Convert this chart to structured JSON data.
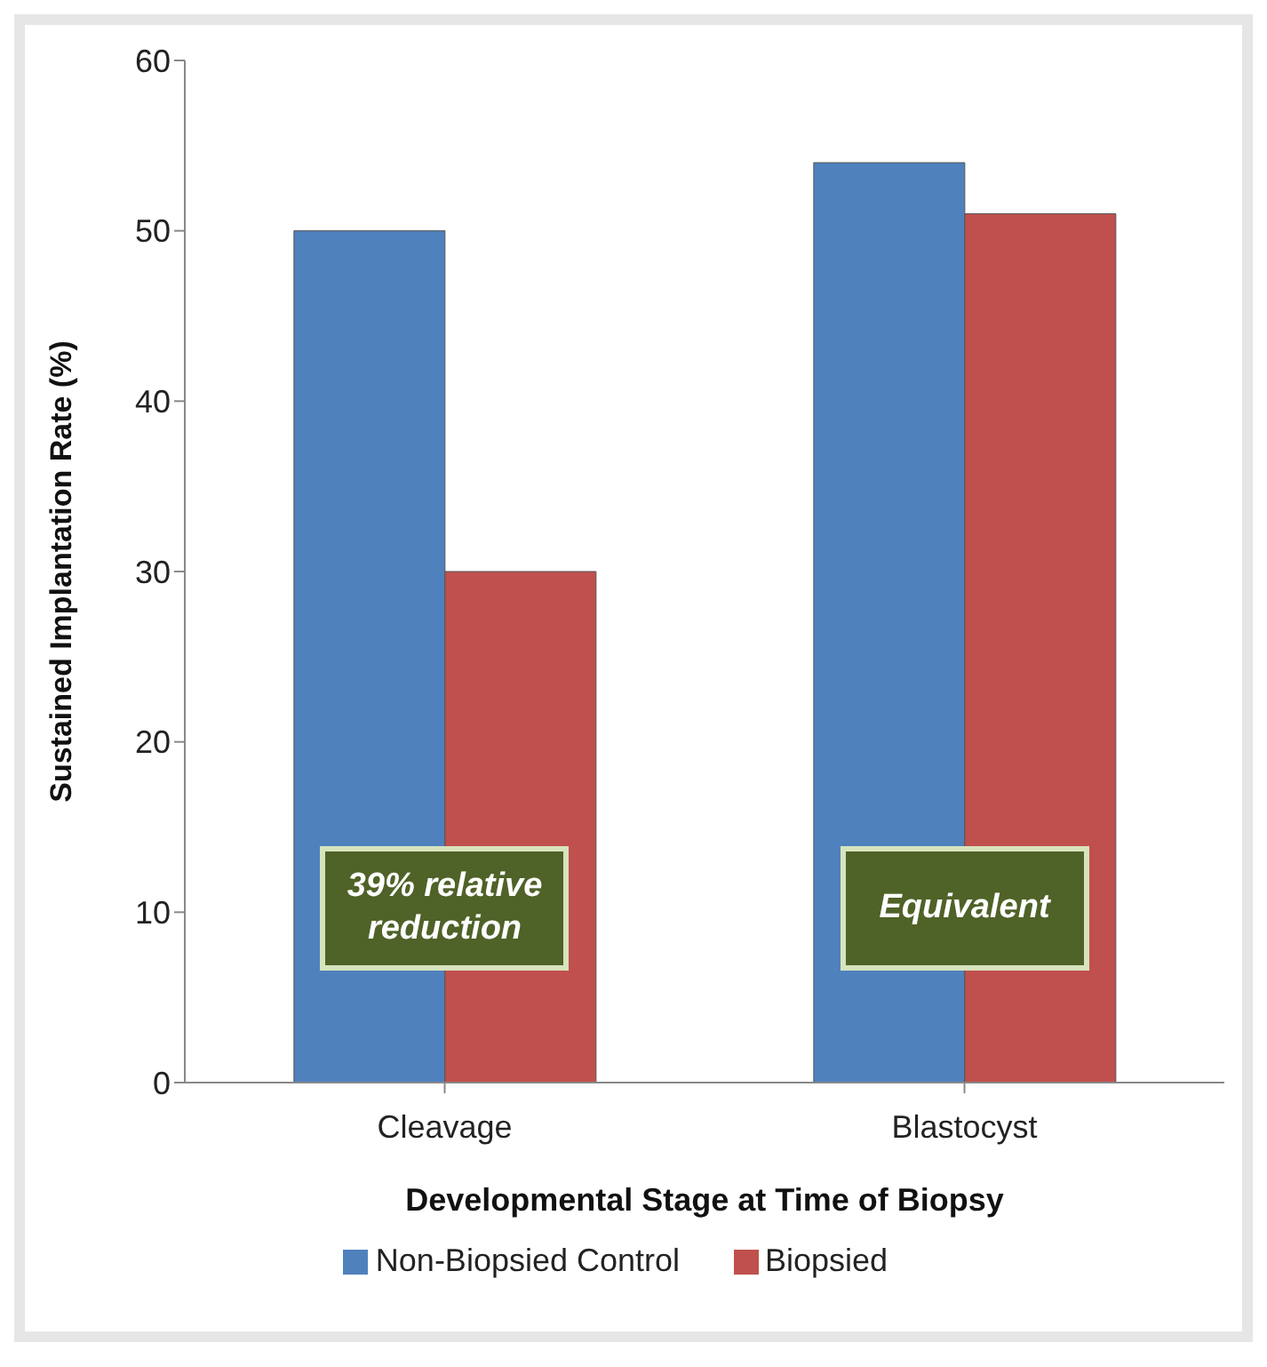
{
  "chart_data": {
    "type": "bar",
    "xlabel": "Developmental Stage at Time of Biopsy",
    "ylabel": "Sustained Implantation Rate (%)",
    "categories": [
      "Cleavage",
      "Blastocyst"
    ],
    "series": [
      {
        "name": "Non-Biopsied Control",
        "color": "#4f81bd",
        "values": [
          50,
          54
        ]
      },
      {
        "name": "Biopsied",
        "color": "#c0504d",
        "values": [
          30,
          51
        ]
      }
    ],
    "ylim": [
      0,
      60
    ],
    "yticks": [
      0,
      10,
      20,
      30,
      40,
      50,
      60
    ],
    "grid": false,
    "legend": "bottom",
    "annotations": [
      "39% relative reduction",
      "Equivalent"
    ]
  }
}
